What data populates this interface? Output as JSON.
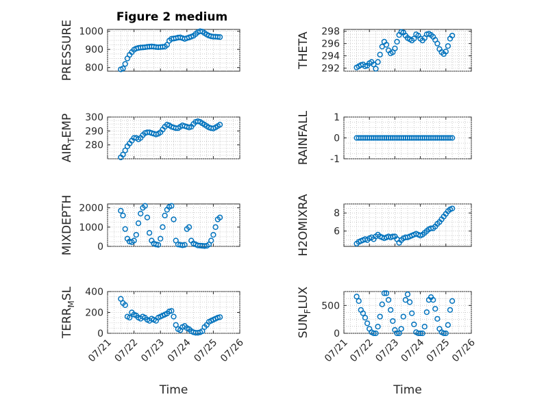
{
  "figure": {
    "title": "Figure 2 medium",
    "marker_color": "#0072bd"
  },
  "chart_data": [
    {
      "type": "scatter",
      "ylabel": "PRESSURE",
      "xlabel": "",
      "show_xticklabels": false,
      "xlim": [
        "07/21",
        "07/26"
      ],
      "ylim": [
        780,
        1010
      ],
      "yticks": [
        800,
        900,
        1000
      ],
      "grid": true,
      "x": [
        "07/21 12:00",
        "07/21 14:00",
        "07/21 16:00",
        "07/21 18:00",
        "07/21 20:00",
        "07/21 22:00",
        "07/22 00:00",
        "07/22 02:00",
        "07/22 04:00",
        "07/22 06:00",
        "07/22 08:00",
        "07/22 10:00",
        "07/22 12:00",
        "07/22 14:00",
        "07/22 16:00",
        "07/22 18:00",
        "07/22 20:00",
        "07/22 22:00",
        "07/23 00:00",
        "07/23 02:00",
        "07/23 04:00",
        "07/23 06:00",
        "07/23 08:00",
        "07/23 10:00",
        "07/23 12:00",
        "07/23 14:00",
        "07/23 16:00",
        "07/23 18:00",
        "07/23 20:00",
        "07/23 22:00",
        "07/24 00:00",
        "07/24 02:00",
        "07/24 04:00",
        "07/24 06:00",
        "07/24 08:00",
        "07/24 10:00",
        "07/24 12:00",
        "07/24 14:00",
        "07/24 16:00",
        "07/24 18:00",
        "07/24 20:00",
        "07/24 22:00",
        "07/25 00:00",
        "07/25 02:00",
        "07/25 04:00",
        "07/25 06:00"
      ],
      "y": [
        790,
        795,
        820,
        850,
        870,
        885,
        898,
        905,
        908,
        910,
        911,
        912,
        914,
        915,
        916,
        915,
        913,
        912,
        913,
        914,
        915,
        925,
        948,
        958,
        960,
        962,
        965,
        966,
        962,
        958,
        962,
        966,
        970,
        975,
        985,
        995,
        1000,
        998,
        990,
        982,
        976,
        972,
        970,
        970,
        969,
        968
      ]
    },
    {
      "type": "scatter",
      "ylabel": "THETA",
      "xlabel": "",
      "show_xticklabels": false,
      "xlim": [
        "07/21",
        "07/26"
      ],
      "ylim": [
        291.5,
        298.3
      ],
      "yticks": [
        292,
        294,
        296,
        298
      ],
      "grid": true,
      "x": [
        "07/21 12:00",
        "07/21 14:00",
        "07/21 16:00",
        "07/21 18:00",
        "07/21 20:00",
        "07/21 22:00",
        "07/22 00:00",
        "07/22 02:00",
        "07/22 04:00",
        "07/22 06:00",
        "07/22 08:00",
        "07/22 10:00",
        "07/22 12:00",
        "07/22 14:00",
        "07/22 16:00",
        "07/22 18:00",
        "07/22 20:00",
        "07/22 22:00",
        "07/23 00:00",
        "07/23 02:00",
        "07/23 04:00",
        "07/23 06:00",
        "07/23 08:00",
        "07/23 10:00",
        "07/23 12:00",
        "07/23 14:00",
        "07/23 16:00",
        "07/23 18:00",
        "07/23 20:00",
        "07/23 22:00",
        "07/24 00:00",
        "07/24 02:00",
        "07/24 04:00",
        "07/24 06:00",
        "07/24 08:00",
        "07/24 10:00",
        "07/24 12:00",
        "07/24 14:00",
        "07/24 16:00",
        "07/24 18:00",
        "07/24 20:00",
        "07/24 22:00",
        "07/25 00:00",
        "07/25 02:00",
        "07/25 04:00",
        "07/25 06:00"
      ],
      "y": [
        292.1,
        292.3,
        292.5,
        292.6,
        292.3,
        292.4,
        292.8,
        293.0,
        292.6,
        291.9,
        293.0,
        294.2,
        295.5,
        296.3,
        295.8,
        294.9,
        294.4,
        294.6,
        295.2,
        296.3,
        297.4,
        297.9,
        297.8,
        297.3,
        296.9,
        296.7,
        296.5,
        296.8,
        297.5,
        297.3,
        296.8,
        296.5,
        296.9,
        297.5,
        297.6,
        297.4,
        297.1,
        296.6,
        296.0,
        295.1,
        294.6,
        294.3,
        294.7,
        295.6,
        296.8,
        297.3
      ]
    },
    {
      "type": "scatter",
      "ylabel": "AIR_TEMP",
      "xlabel": "",
      "show_xticklabels": false,
      "xlim": [
        "07/21",
        "07/26"
      ],
      "ylim": [
        270,
        300
      ],
      "yticks": [
        280,
        290,
        300
      ],
      "grid": true,
      "x": [
        "07/21 12:00",
        "07/21 14:00",
        "07/21 16:00",
        "07/21 18:00",
        "07/21 20:00",
        "07/21 22:00",
        "07/22 00:00",
        "07/22 02:00",
        "07/22 04:00",
        "07/22 06:00",
        "07/22 08:00",
        "07/22 10:00",
        "07/22 12:00",
        "07/22 14:00",
        "07/22 16:00",
        "07/22 18:00",
        "07/22 20:00",
        "07/22 22:00",
        "07/23 00:00",
        "07/23 02:00",
        "07/23 04:00",
        "07/23 06:00",
        "07/23 08:00",
        "07/23 10:00",
        "07/23 12:00",
        "07/23 14:00",
        "07/23 16:00",
        "07/23 18:00",
        "07/23 20:00",
        "07/23 22:00",
        "07/24 00:00",
        "07/24 02:00",
        "07/24 04:00",
        "07/24 06:00",
        "07/24 08:00",
        "07/24 10:00",
        "07/24 12:00",
        "07/24 14:00",
        "07/24 16:00",
        "07/24 18:00",
        "07/24 20:00",
        "07/24 22:00",
        "07/25 00:00",
        "07/25 02:00",
        "07/25 04:00",
        "07/25 06:00"
      ],
      "y": [
        271,
        273,
        276,
        279,
        281,
        283,
        285,
        285,
        284,
        285,
        287,
        288.5,
        289,
        289,
        288.5,
        288,
        287.5,
        288,
        289,
        291,
        293,
        294.5,
        294,
        293,
        292.5,
        292,
        292,
        293,
        294,
        293.5,
        293,
        292.5,
        293,
        295,
        296.5,
        297,
        296.5,
        295.5,
        294.5,
        293.5,
        292.5,
        292,
        291.8,
        292.5,
        293.5,
        294.5
      ]
    },
    {
      "type": "scatter",
      "ylabel": "RAINFALL",
      "xlabel": "",
      "show_xticklabels": false,
      "xlim": [
        "07/21",
        "07/26"
      ],
      "ylim": [
        -1,
        1
      ],
      "yticks": [
        -1,
        0,
        1
      ],
      "grid": true,
      "x": [
        "07/21 12:00",
        "07/21 14:00",
        "07/21 16:00",
        "07/21 18:00",
        "07/21 20:00",
        "07/21 22:00",
        "07/22 00:00",
        "07/22 02:00",
        "07/22 04:00",
        "07/22 06:00",
        "07/22 08:00",
        "07/22 10:00",
        "07/22 12:00",
        "07/22 14:00",
        "07/22 16:00",
        "07/22 18:00",
        "07/22 20:00",
        "07/22 22:00",
        "07/23 00:00",
        "07/23 02:00",
        "07/23 04:00",
        "07/23 06:00",
        "07/23 08:00",
        "07/23 10:00",
        "07/23 12:00",
        "07/23 14:00",
        "07/23 16:00",
        "07/23 18:00",
        "07/23 20:00",
        "07/23 22:00",
        "07/24 00:00",
        "07/24 02:00",
        "07/24 04:00",
        "07/24 06:00",
        "07/24 08:00",
        "07/24 10:00",
        "07/24 12:00",
        "07/24 14:00",
        "07/24 16:00",
        "07/24 18:00",
        "07/24 20:00",
        "07/24 22:00",
        "07/25 00:00",
        "07/25 02:00",
        "07/25 04:00",
        "07/25 06:00"
      ],
      "y": [
        0,
        0,
        0,
        0,
        0,
        0,
        0,
        0,
        0,
        0,
        0,
        0,
        0,
        0,
        0,
        0,
        0,
        0,
        0,
        0,
        0,
        0,
        0,
        0,
        0,
        0,
        0,
        0,
        0,
        0,
        0,
        0,
        0,
        0,
        0,
        0,
        0,
        0,
        0,
        0,
        0,
        0,
        0,
        0,
        0,
        0
      ]
    },
    {
      "type": "scatter",
      "ylabel": "MIXDEPTH",
      "xlabel": "",
      "show_xticklabels": false,
      "xlim": [
        "07/21",
        "07/26"
      ],
      "ylim": [
        0,
        2200
      ],
      "yticks": [
        0,
        1000,
        2000
      ],
      "grid": true,
      "x": [
        "07/21 12:00",
        "07/21 14:00",
        "07/21 16:00",
        "07/21 18:00",
        "07/21 20:00",
        "07/21 22:00",
        "07/22 00:00",
        "07/22 02:00",
        "07/22 04:00",
        "07/22 06:00",
        "07/22 08:00",
        "07/22 10:00",
        "07/22 12:00",
        "07/22 14:00",
        "07/22 16:00",
        "07/22 18:00",
        "07/22 20:00",
        "07/22 22:00",
        "07/23 00:00",
        "07/23 02:00",
        "07/23 04:00",
        "07/23 06:00",
        "07/23 08:00",
        "07/23 10:00",
        "07/23 12:00",
        "07/23 14:00",
        "07/23 16:00",
        "07/23 18:00",
        "07/23 20:00",
        "07/23 22:00",
        "07/24 00:00",
        "07/24 02:00",
        "07/24 04:00",
        "07/24 06:00",
        "07/24 08:00",
        "07/24 10:00",
        "07/24 12:00",
        "07/24 14:00",
        "07/24 16:00",
        "07/24 18:00",
        "07/24 20:00",
        "07/24 22:00",
        "07/25 00:00",
        "07/25 02:00",
        "07/25 04:00",
        "07/25 06:00"
      ],
      "y": [
        1850,
        1600,
        900,
        400,
        250,
        220,
        300,
        600,
        1200,
        1700,
        2000,
        2100,
        1500,
        700,
        300,
        150,
        100,
        80,
        400,
        1000,
        1600,
        1900,
        2050,
        2100,
        1400,
        300,
        100,
        80,
        60,
        80,
        900,
        1000,
        300,
        150,
        100,
        50,
        40,
        30,
        20,
        30,
        100,
        300,
        600,
        1000,
        1400,
        1500
      ]
    },
    {
      "type": "scatter",
      "ylabel": "H2OMIXRA",
      "xlabel": "",
      "show_xticklabels": false,
      "xlim": [
        "07/21",
        "07/26"
      ],
      "ylim": [
        4.3,
        9
      ],
      "yticks": [
        6,
        8
      ],
      "grid": true,
      "x": [
        "07/21 12:00",
        "07/21 14:00",
        "07/21 16:00",
        "07/21 18:00",
        "07/21 20:00",
        "07/21 22:00",
        "07/22 00:00",
        "07/22 02:00",
        "07/22 04:00",
        "07/22 06:00",
        "07/22 08:00",
        "07/22 10:00",
        "07/22 12:00",
        "07/22 14:00",
        "07/22 16:00",
        "07/22 18:00",
        "07/22 20:00",
        "07/22 22:00",
        "07/23 00:00",
        "07/23 02:00",
        "07/23 04:00",
        "07/23 06:00",
        "07/23 08:00",
        "07/23 10:00",
        "07/23 12:00",
        "07/23 14:00",
        "07/23 16:00",
        "07/23 18:00",
        "07/23 20:00",
        "07/23 22:00",
        "07/24 00:00",
        "07/24 02:00",
        "07/24 04:00",
        "07/24 06:00",
        "07/24 08:00",
        "07/24 10:00",
        "07/24 12:00",
        "07/24 14:00",
        "07/24 16:00",
        "07/24 18:00",
        "07/24 20:00",
        "07/24 22:00",
        "07/25 00:00",
        "07/25 02:00",
        "07/25 04:00",
        "07/25 06:00"
      ],
      "y": [
        4.6,
        4.8,
        4.9,
        5.0,
        5.1,
        5.0,
        5.2,
        5.3,
        5.1,
        5.4,
        5.6,
        5.4,
        5.3,
        5.2,
        5.3,
        5.4,
        5.3,
        5.4,
        5.4,
        5.1,
        4.7,
        5.0,
        5.2,
        5.3,
        5.3,
        5.4,
        5.5,
        5.6,
        5.7,
        5.6,
        5.5,
        5.6,
        5.8,
        6.0,
        6.2,
        6.3,
        6.3,
        6.5,
        6.8,
        7.0,
        7.3,
        7.6,
        7.9,
        8.2,
        8.4,
        8.5
      ]
    },
    {
      "type": "scatter",
      "ylabel": "TERR_MSL",
      "xlabel": "Time",
      "show_xticklabels": true,
      "xlim": [
        "07/21",
        "07/26"
      ],
      "ylim": [
        0,
        400
      ],
      "yticks": [
        0,
        200,
        400
      ],
      "grid": true,
      "xticks": [
        "07/21",
        "07/22",
        "07/23",
        "07/24",
        "07/25",
        "07/26"
      ],
      "x": [
        "07/21 12:00",
        "07/21 14:00",
        "07/21 16:00",
        "07/21 18:00",
        "07/21 20:00",
        "07/21 22:00",
        "07/22 00:00",
        "07/22 02:00",
        "07/22 04:00",
        "07/22 06:00",
        "07/22 08:00",
        "07/22 10:00",
        "07/22 12:00",
        "07/22 14:00",
        "07/22 16:00",
        "07/22 18:00",
        "07/22 20:00",
        "07/22 22:00",
        "07/23 00:00",
        "07/23 02:00",
        "07/23 04:00",
        "07/23 06:00",
        "07/23 08:00",
        "07/23 10:00",
        "07/23 12:00",
        "07/23 14:00",
        "07/23 16:00",
        "07/23 18:00",
        "07/23 20:00",
        "07/23 22:00",
        "07/24 00:00",
        "07/24 02:00",
        "07/24 04:00",
        "07/24 06:00",
        "07/24 08:00",
        "07/24 10:00",
        "07/24 12:00",
        "07/24 14:00",
        "07/24 16:00",
        "07/24 18:00",
        "07/24 20:00",
        "07/24 22:00",
        "07/25 00:00",
        "07/25 02:00",
        "07/25 04:00",
        "07/25 06:00"
      ],
      "y": [
        330,
        290,
        270,
        160,
        150,
        200,
        180,
        170,
        150,
        140,
        160,
        150,
        130,
        120,
        140,
        130,
        120,
        150,
        160,
        170,
        180,
        190,
        210,
        215,
        160,
        80,
        40,
        30,
        60,
        70,
        50,
        40,
        20,
        10,
        5,
        5,
        10,
        20,
        60,
        80,
        110,
        120,
        130,
        140,
        150,
        155
      ]
    },
    {
      "type": "scatter",
      "ylabel": "SUN_FLUX",
      "xlabel": "Time",
      "show_xticklabels": true,
      "xlim": [
        "07/21",
        "07/26"
      ],
      "ylim": [
        0,
        750
      ],
      "yticks": [
        0,
        500
      ],
      "grid": true,
      "xticks": [
        "07/21",
        "07/22",
        "07/23",
        "07/24",
        "07/25",
        "07/26"
      ],
      "x": [
        "07/21 12:00",
        "07/21 14:00",
        "07/21 16:00",
        "07/21 18:00",
        "07/21 20:00",
        "07/21 22:00",
        "07/22 00:00",
        "07/22 02:00",
        "07/22 04:00",
        "07/22 06:00",
        "07/22 08:00",
        "07/22 10:00",
        "07/22 12:00",
        "07/22 14:00",
        "07/22 16:00",
        "07/22 18:00",
        "07/22 20:00",
        "07/22 22:00",
        "07/23 00:00",
        "07/23 02:00",
        "07/23 04:00",
        "07/23 06:00",
        "07/23 08:00",
        "07/23 10:00",
        "07/23 12:00",
        "07/23 14:00",
        "07/23 16:00",
        "07/23 18:00",
        "07/23 20:00",
        "07/23 22:00",
        "07/24 00:00",
        "07/24 02:00",
        "07/24 04:00",
        "07/24 06:00",
        "07/24 08:00",
        "07/24 10:00",
        "07/24 12:00",
        "07/24 14:00",
        "07/24 16:00",
        "07/24 18:00",
        "07/24 20:00",
        "07/24 22:00",
        "07/25 00:00",
        "07/25 02:00",
        "07/25 04:00",
        "07/25 06:00"
      ],
      "y": [
        660,
        580,
        420,
        360,
        280,
        180,
        80,
        20,
        0,
        0,
        120,
        300,
        520,
        720,
        720,
        600,
        420,
        220,
        60,
        0,
        0,
        80,
        300,
        600,
        700,
        560,
        360,
        160,
        20,
        0,
        0,
        0,
        120,
        380,
        600,
        650,
        600,
        440,
        260,
        80,
        20,
        0,
        0,
        150,
        420,
        580
      ]
    }
  ]
}
